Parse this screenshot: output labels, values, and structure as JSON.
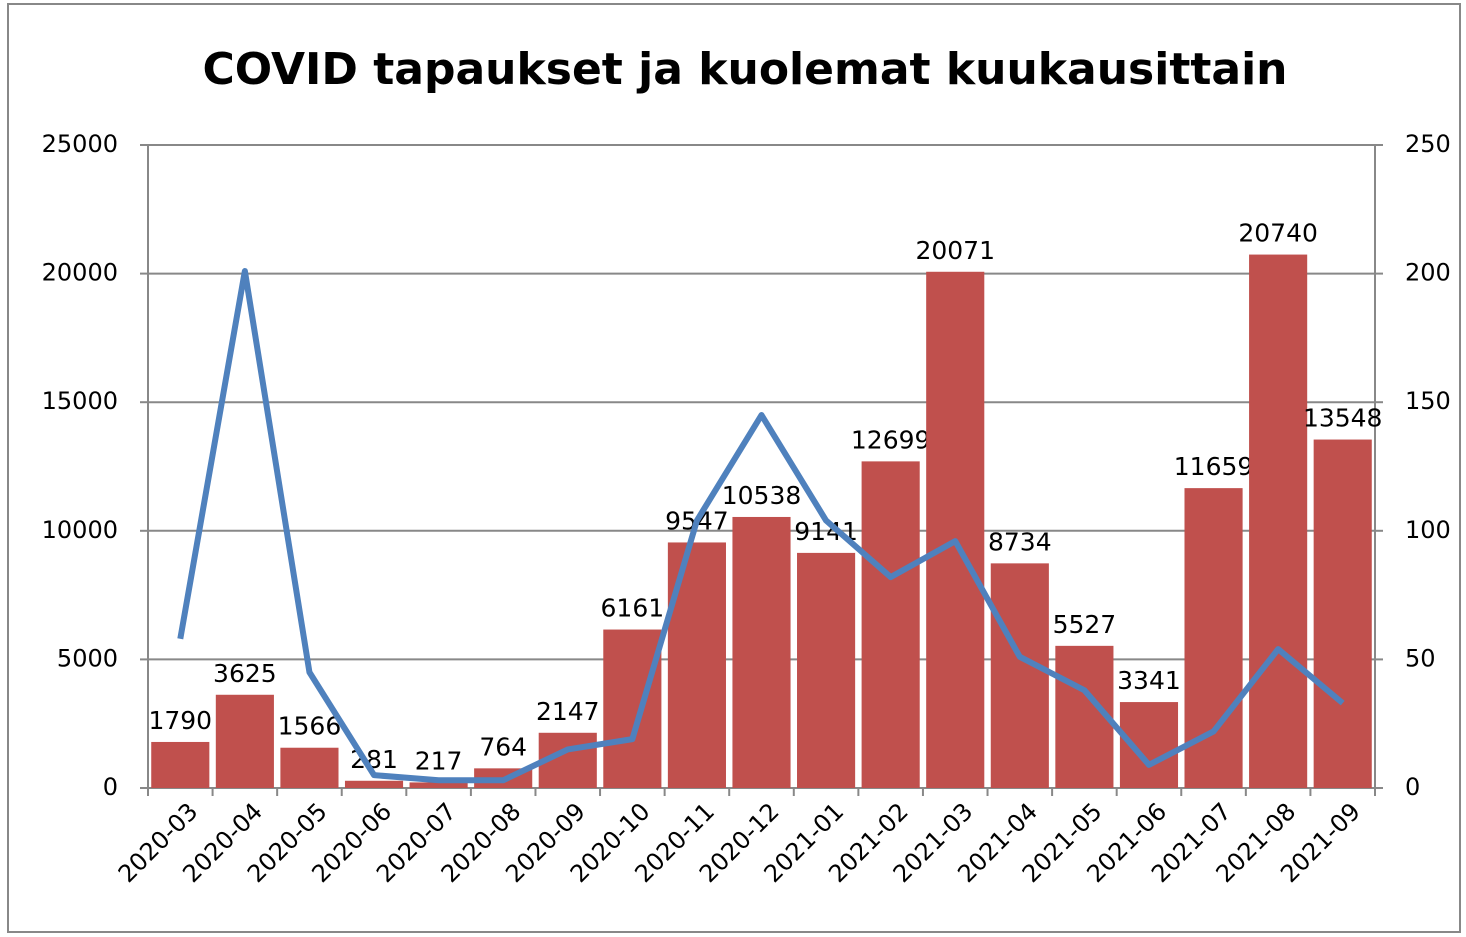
{
  "chart_data": {
    "type": "bar_line",
    "title": "COVID tapaukset ja kuolemat kuukausittain",
    "categories": [
      "2020-03",
      "2020-04",
      "2020-05",
      "2020-06",
      "2020-07",
      "2020-08",
      "2020-09",
      "2020-10",
      "2020-11",
      "2020-12",
      "2021-01",
      "2021-02",
      "2021-03",
      "2021-04",
      "2021-05",
      "2021-06",
      "2021-07",
      "2021-08",
      "2021-09"
    ],
    "series": [
      {
        "type": "bar",
        "color": "#c0504d",
        "values": [
          1790,
          3625,
          1566,
          281,
          217,
          764,
          2147,
          6161,
          9547,
          10538,
          9141,
          12699,
          20071,
          8734,
          5527,
          3341,
          11659,
          20740,
          13548
        ],
        "data_labels": true
      },
      {
        "type": "line",
        "axis": "y2",
        "color": "#4f81bd",
        "values": [
          58,
          201,
          45,
          5,
          3,
          3,
          15,
          19,
          104,
          145,
          104,
          82,
          96,
          51,
          38,
          9,
          22,
          54,
          33
        ]
      }
    ],
    "ylim": [
      0,
      25000
    ],
    "yticks": [
      0,
      5000,
      10000,
      15000,
      20000,
      25000
    ],
    "y2lim": [
      0,
      250
    ],
    "y2ticks": [
      0,
      50,
      100,
      150,
      200,
      250
    ],
    "grid": true
  }
}
